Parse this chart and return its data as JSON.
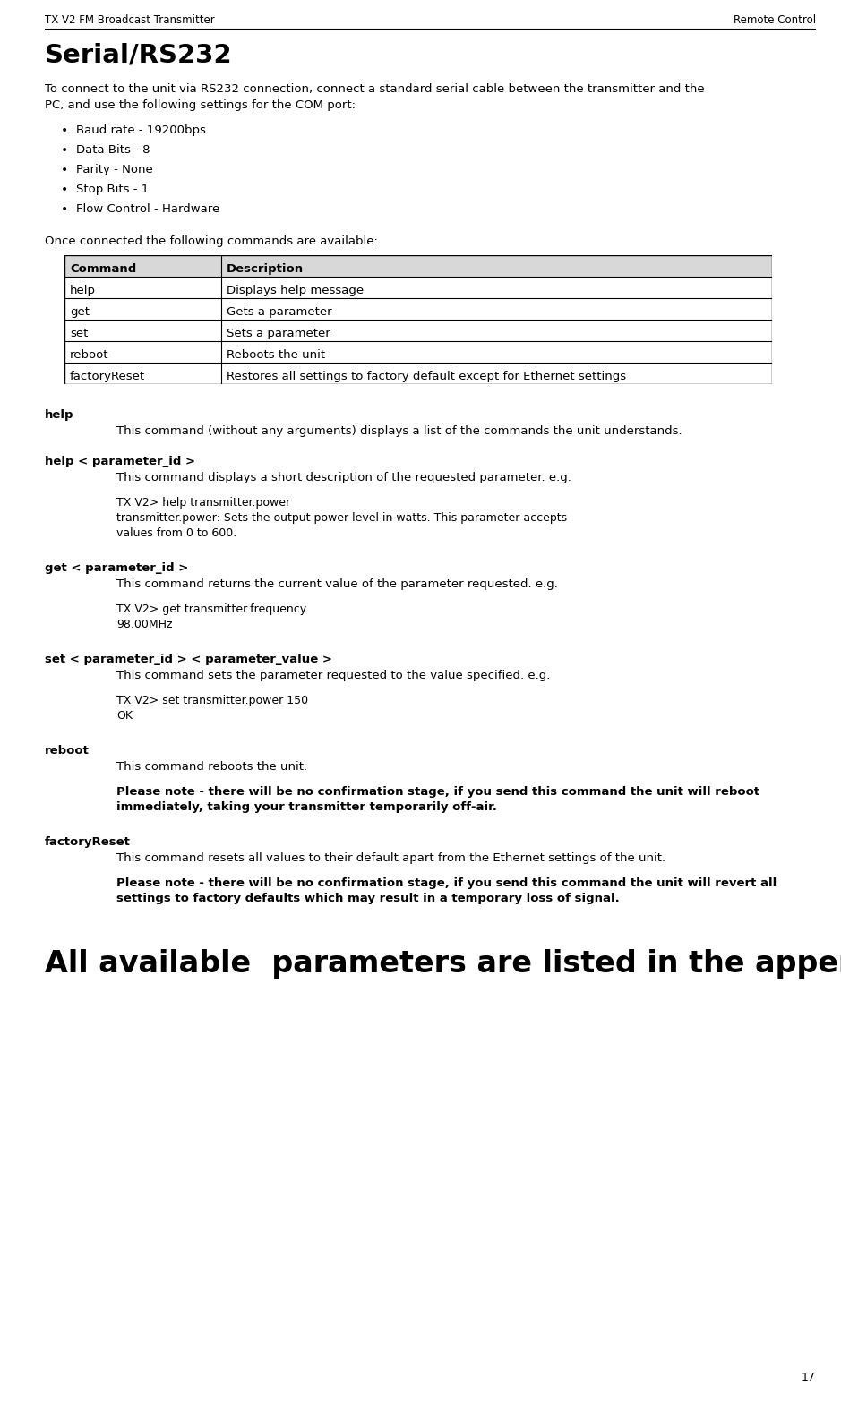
{
  "header_left": "TX V2 FM Broadcast Transmitter",
  "header_right": "Remote Control",
  "page_number": "17",
  "section_title": "Serial/RS232",
  "intro_line1": "To connect to the unit via RS232 connection, connect a standard serial cable between the transmitter and the",
  "intro_line2": "PC, and use the following settings for the COM port:",
  "bullets": [
    "Baud rate - 19200bps",
    "Data Bits - 8",
    "Parity - None",
    "Stop Bits - 1",
    "Flow Control - Hardware"
  ],
  "after_bullets": "Once connected the following commands are available:",
  "table_headers": [
    "Command",
    "Description"
  ],
  "table_rows": [
    [
      "help",
      "Displays help message"
    ],
    [
      "get",
      "Gets a parameter"
    ],
    [
      "set",
      "Sets a parameter"
    ],
    [
      "reboot",
      "Reboots the unit"
    ],
    [
      "factoryReset",
      "Restores all settings to factory default except for Ethernet settings"
    ]
  ],
  "sections": [
    {
      "heading": "help",
      "indent_text": "This command (without any arguments) displays a list of the commands the unit understands.",
      "code_lines": [],
      "note": ""
    },
    {
      "heading": "help < parameter_id >",
      "indent_text": "This command displays a short description of the requested parameter. e.g.",
      "code_lines": [
        "TX V2> help transmitter.power",
        "transmitter.power: Sets the output power level in watts. This parameter accepts",
        "values from 0 to 600."
      ],
      "note": ""
    },
    {
      "heading": "get < parameter_id >",
      "indent_text": "This command returns the current value of the parameter requested. e.g.",
      "code_lines": [
        "TX V2> get transmitter.frequency",
        "98.00MHz"
      ],
      "note": ""
    },
    {
      "heading": "set < parameter_id > < parameter_value >",
      "indent_text": "This command sets the parameter requested to the value specified. e.g.",
      "code_lines": [
        "TX V2> set transmitter.power 150",
        "OK"
      ],
      "note": ""
    },
    {
      "heading": "reboot",
      "indent_text": "This command reboots the unit.",
      "code_lines": [],
      "note_lines": [
        "Please note - there will be no confirmation stage, if you send this command the unit will reboot",
        "immediately, taking your transmitter temporarily off-air."
      ]
    },
    {
      "heading": "factoryReset",
      "indent_text": "This command resets all values to their default apart from the Ethernet settings of the unit.",
      "code_lines": [],
      "note_lines": [
        "Please note - there will be no confirmation stage, if you send this command the unit will revert all",
        "settings to factory defaults which may result in a temporary loss of signal."
      ]
    }
  ],
  "footer_text": "All available  parameters are listed in the appendix",
  "bg_color": "#ffffff",
  "text_color": "#000000"
}
